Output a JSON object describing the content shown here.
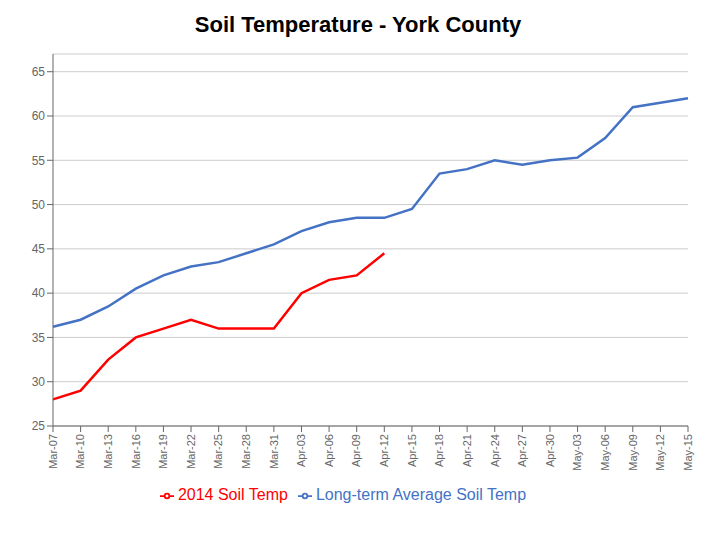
{
  "chart_data": {
    "type": "line",
    "title": "Soil Temperature - York County",
    "categories": [
      "Mar-07",
      "Mar-10",
      "Mar-13",
      "Mar-16",
      "Mar-19",
      "Mar-22",
      "Mar-25",
      "Mar-28",
      "Mar-31",
      "Apr-03",
      "Apr-06",
      "Apr-09",
      "Apr-12",
      "Apr-15",
      "Apr-18",
      "Apr-21",
      "Apr-24",
      "Apr-27",
      "Apr-30",
      "May-03",
      "May-06",
      "May-09",
      "May-12",
      "May-15"
    ],
    "series": [
      {
        "name": "Long-term Average Soil Temp",
        "color": "#4472C4",
        "values": [
          36.2,
          37.0,
          38.5,
          40.5,
          42.0,
          43.0,
          43.5,
          44.5,
          45.5,
          47.0,
          48.0,
          48.5,
          48.5,
          49.5,
          53.5,
          54.0,
          55.0,
          54.5,
          55.0,
          55.3,
          57.5,
          61.0,
          61.5,
          62.0
        ]
      },
      {
        "name": "2014 Soil Temp",
        "color": "#FF0000",
        "values": [
          28.0,
          29.0,
          32.5,
          35.0,
          36.0,
          37.0,
          36.0,
          36.0,
          36.0,
          40.0,
          41.5,
          42.0,
          44.5,
          null,
          null,
          null,
          null,
          null,
          null,
          null,
          null,
          null,
          null,
          null
        ]
      }
    ],
    "ylim": [
      25,
      67
    ],
    "yticks": [
      25,
      30,
      35,
      40,
      45,
      50,
      55,
      60,
      65
    ],
    "grid": true,
    "legend": "bottom"
  }
}
